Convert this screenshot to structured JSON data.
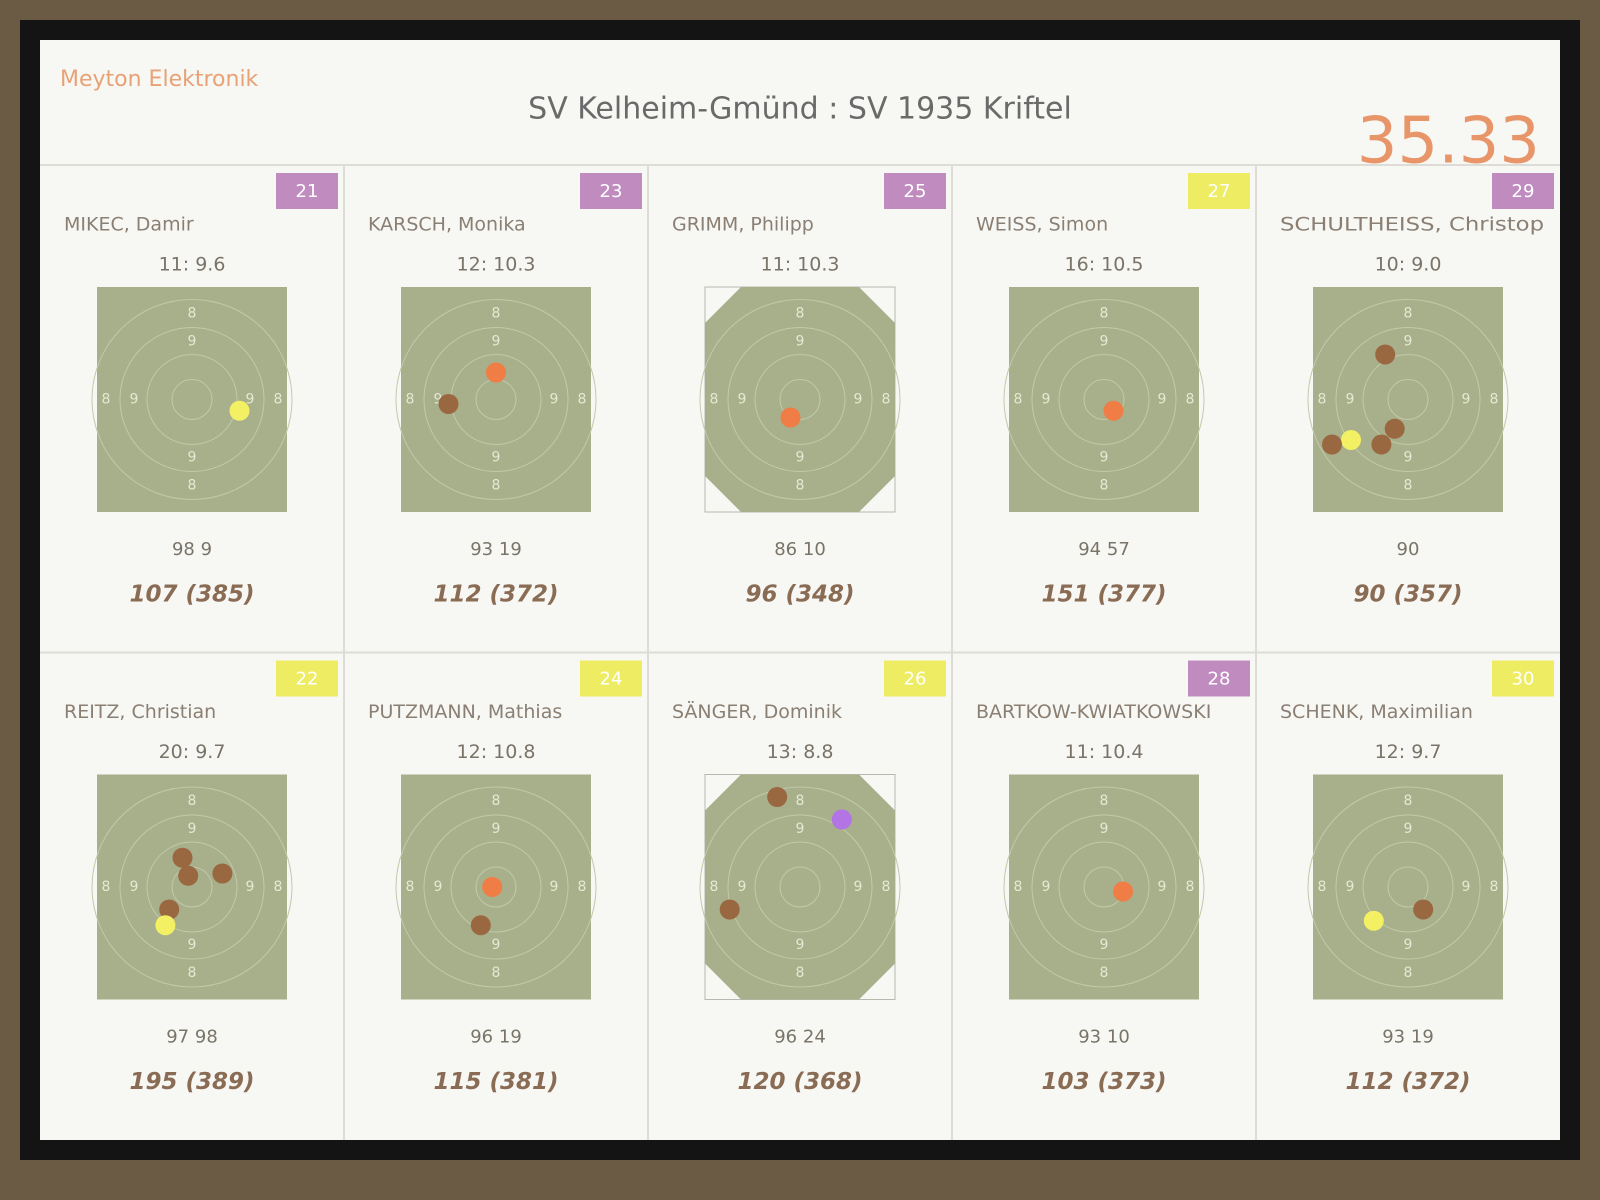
{
  "header": {
    "brand": "Meyton Elektronik",
    "title": "SV Kelheim-Gmünd : SV 1935 Kriftel",
    "clock": "35.33"
  },
  "target": {
    "ring_labels": [
      "9",
      "8"
    ]
  },
  "shooters": [
    {
      "lane": 21,
      "badge_color": "#c08cc0",
      "name": "MIKEC, Damir",
      "shot": "11: 9.6",
      "series": "98 9",
      "total": "107 (385)"
    },
    {
      "lane": 23,
      "badge_color": "#c08cc0",
      "name": "KARSCH, Monika",
      "shot": "12: 10.3",
      "series": "93 19",
      "total": "112 (372)"
    },
    {
      "lane": 25,
      "badge_color": "#c08cc0",
      "name": "GRIMM, Philipp",
      "shot": "11: 10.3",
      "series": "86 10",
      "total": "96 (348)"
    },
    {
      "lane": 27,
      "badge_color": "#eeec62",
      "name": "WEISS, Simon",
      "shot": "16: 10.5",
      "series": "94 57",
      "total": "151 (377)"
    },
    {
      "lane": 29,
      "badge_color": "#c08cc0",
      "name": "SCHULTHEISS, Christop",
      "shot": "10: 9.0",
      "series": "90",
      "total": "90 (357)"
    },
    {
      "lane": 22,
      "badge_color": "#eeec62",
      "name": "REITZ, Christian",
      "shot": "20: 9.7",
      "series": "97 98",
      "total": "195 (389)"
    },
    {
      "lane": 24,
      "badge_color": "#eeec62",
      "name": "PUTZMANN, Mathias",
      "shot": "12: 10.8",
      "series": "96 19",
      "total": "115 (381)"
    },
    {
      "lane": 26,
      "badge_color": "#eeec62",
      "name": "SÄNGER, Dominik",
      "shot": "13: 8.8",
      "series": "96 24",
      "total": "120 (368)"
    },
    {
      "lane": 28,
      "badge_color": "#c08cc0",
      "name": "BARTKOW-KWIATKOWSKI",
      "shot": "11: 10.4",
      "series": "93 10",
      "total": "103 (373)"
    },
    {
      "lane": 30,
      "badge_color": "#eeec62",
      "name": "SCHENK, Maximilian",
      "shot": "12: 9.7",
      "series": "93 19",
      "total": "112 (372)"
    }
  ]
}
